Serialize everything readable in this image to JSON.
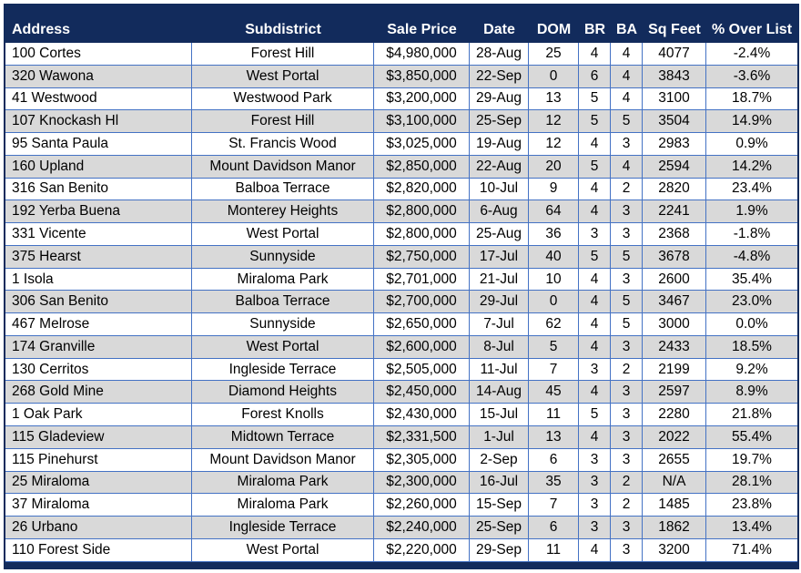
{
  "colors": {
    "header_bg": "#122B5C",
    "header_text": "#FFFFFF",
    "grid_border": "#4472C4",
    "alt_row_bg": "#D9D9D9",
    "row_bg": "#FFFFFF",
    "body_text": "#000000"
  },
  "chart_data": {
    "type": "table",
    "columns": [
      "Address",
      "Subdistrict",
      "Sale Price",
      "Date",
      "DOM",
      "BR",
      "BA",
      "Sq Feet",
      "% Over List"
    ],
    "rows": [
      [
        "100 Cortes",
        "Forest Hill",
        "$4,980,000",
        "28-Aug",
        "25",
        "4",
        "4",
        "4077",
        "-2.4%"
      ],
      [
        "320 Wawona",
        "West Portal",
        "$3,850,000",
        "22-Sep",
        "0",
        "6",
        "4",
        "3843",
        "-3.6%"
      ],
      [
        "41 Westwood",
        "Westwood Park",
        "$3,200,000",
        "29-Aug",
        "13",
        "5",
        "4",
        "3100",
        "18.7%"
      ],
      [
        "107 Knockash Hl",
        "Forest Hill",
        "$3,100,000",
        "25-Sep",
        "12",
        "5",
        "5",
        "3504",
        "14.9%"
      ],
      [
        "95 Santa Paula",
        "St. Francis Wood",
        "$3,025,000",
        "19-Aug",
        "12",
        "4",
        "3",
        "2983",
        "0.9%"
      ],
      [
        "160 Upland",
        "Mount Davidson Manor",
        "$2,850,000",
        "22-Aug",
        "20",
        "5",
        "4",
        "2594",
        "14.2%"
      ],
      [
        "316 San Benito",
        "Balboa Terrace",
        "$2,820,000",
        "10-Jul",
        "9",
        "4",
        "2",
        "2820",
        "23.4%"
      ],
      [
        "192 Yerba Buena",
        "Monterey Heights",
        "$2,800,000",
        "6-Aug",
        "64",
        "4",
        "3",
        "2241",
        "1.9%"
      ],
      [
        "331 Vicente",
        "West Portal",
        "$2,800,000",
        "25-Aug",
        "36",
        "3",
        "3",
        "2368",
        "-1.8%"
      ],
      [
        "375 Hearst",
        "Sunnyside",
        "$2,750,000",
        "17-Jul",
        "40",
        "5",
        "5",
        "3678",
        "-4.8%"
      ],
      [
        "1 Isola",
        "Miraloma Park",
        "$2,701,000",
        "21-Jul",
        "10",
        "4",
        "3",
        "2600",
        "35.4%"
      ],
      [
        "306 San Benito",
        "Balboa Terrace",
        "$2,700,000",
        "29-Jul",
        "0",
        "4",
        "5",
        "3467",
        "23.0%"
      ],
      [
        "467 Melrose",
        "Sunnyside",
        "$2,650,000",
        "7-Jul",
        "62",
        "4",
        "5",
        "3000",
        "0.0%"
      ],
      [
        "174 Granville",
        "West Portal",
        "$2,600,000",
        "8-Jul",
        "5",
        "4",
        "3",
        "2433",
        "18.5%"
      ],
      [
        "130 Cerritos",
        "Ingleside Terrace",
        "$2,505,000",
        "11-Jul",
        "7",
        "3",
        "2",
        "2199",
        "9.2%"
      ],
      [
        "268 Gold Mine",
        "Diamond Heights",
        "$2,450,000",
        "14-Aug",
        "45",
        "4",
        "3",
        "2597",
        "8.9%"
      ],
      [
        "1 Oak Park",
        "Forest Knolls",
        "$2,430,000",
        "15-Jul",
        "11",
        "5",
        "3",
        "2280",
        "21.8%"
      ],
      [
        "115 Gladeview",
        "Midtown Terrace",
        "$2,331,500",
        "1-Jul",
        "13",
        "4",
        "3",
        "2022",
        "55.4%"
      ],
      [
        "115 Pinehurst",
        "Mount Davidson Manor",
        "$2,305,000",
        "2-Sep",
        "6",
        "3",
        "3",
        "2655",
        "19.7%"
      ],
      [
        "25 Miraloma",
        "Miraloma Park",
        "$2,300,000",
        "16-Jul",
        "35",
        "3",
        "2",
        "N/A",
        "28.1%"
      ],
      [
        "37 Miraloma",
        "Miraloma Park",
        "$2,260,000",
        "15-Sep",
        "7",
        "3",
        "2",
        "1485",
        "23.8%"
      ],
      [
        "26 Urbano",
        "Ingleside Terrace",
        "$2,240,000",
        "25-Sep",
        "6",
        "3",
        "3",
        "1862",
        "13.4%"
      ],
      [
        "110 Forest Side",
        "West Portal",
        "$2,220,000",
        "29-Sep",
        "11",
        "4",
        "3",
        "3200",
        "71.4%"
      ]
    ]
  }
}
